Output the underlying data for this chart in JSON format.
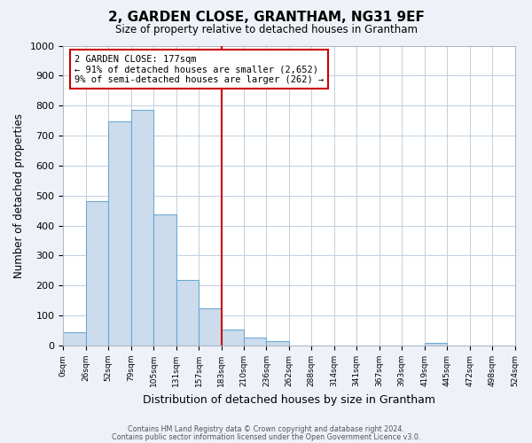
{
  "title": "2, GARDEN CLOSE, GRANTHAM, NG31 9EF",
  "subtitle": "Size of property relative to detached houses in Grantham",
  "xlabel": "Distribution of detached houses by size in Grantham",
  "ylabel": "Number of detached properties",
  "bin_labels": [
    "0sqm",
    "26sqm",
    "52sqm",
    "79sqm",
    "105sqm",
    "131sqm",
    "157sqm",
    "183sqm",
    "210sqm",
    "236sqm",
    "262sqm",
    "288sqm",
    "314sqm",
    "341sqm",
    "367sqm",
    "393sqm",
    "419sqm",
    "445sqm",
    "472sqm",
    "498sqm",
    "524sqm"
  ],
  "bar_centers": [
    0,
    1,
    2,
    3,
    4,
    5,
    6,
    7,
    8,
    9,
    10,
    11,
    12,
    13,
    14,
    15,
    16,
    17,
    18,
    19
  ],
  "bar_heights": [
    45,
    483,
    748,
    785,
    438,
    218,
    125,
    52,
    28,
    15,
    0,
    0,
    0,
    0,
    0,
    0,
    8,
    0,
    0,
    0
  ],
  "bar_color": "#ccdcec",
  "bar_edge_color": "#6aaad4",
  "vline_x": 7,
  "vline_color": "#cc0000",
  "annotation_title": "2 GARDEN CLOSE: 177sqm",
  "annotation_line1": "← 91% of detached houses are smaller (2,652)",
  "annotation_line2": "9% of semi-detached houses are larger (262) →",
  "annotation_box_color": "white",
  "annotation_box_edge_color": "#cc0000",
  "ylim": [
    0,
    1000
  ],
  "yticks": [
    0,
    100,
    200,
    300,
    400,
    500,
    600,
    700,
    800,
    900,
    1000
  ],
  "footer1": "Contains HM Land Registry data © Crown copyright and database right 2024.",
  "footer2": "Contains public sector information licensed under the Open Government Licence v3.0.",
  "bg_color": "#eef2f8",
  "plot_bg_color": "#ffffff",
  "grid_color": "#c0cfe0"
}
